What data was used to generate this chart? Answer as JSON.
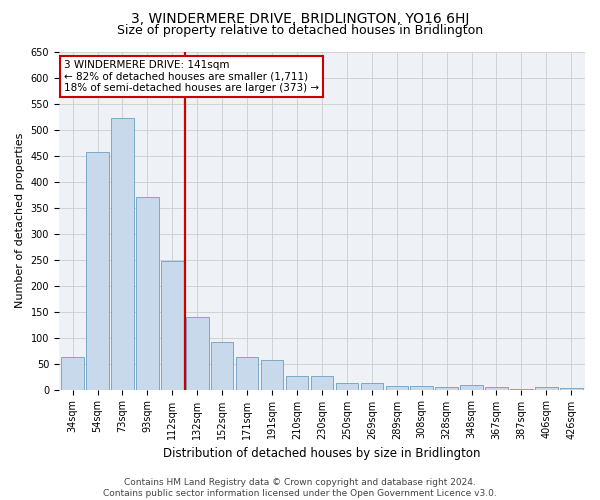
{
  "title": "3, WINDERMERE DRIVE, BRIDLINGTON, YO16 6HJ",
  "subtitle": "Size of property relative to detached houses in Bridlington",
  "xlabel": "Distribution of detached houses by size in Bridlington",
  "ylabel": "Number of detached properties",
  "bar_color": "#c9d9ec",
  "bar_edge_color": "#6a9fc0",
  "categories": [
    "34sqm",
    "54sqm",
    "73sqm",
    "93sqm",
    "112sqm",
    "132sqm",
    "152sqm",
    "171sqm",
    "191sqm",
    "210sqm",
    "230sqm",
    "250sqm",
    "269sqm",
    "289sqm",
    "308sqm",
    "328sqm",
    "348sqm",
    "367sqm",
    "387sqm",
    "406sqm",
    "426sqm"
  ],
  "values": [
    62,
    457,
    522,
    370,
    248,
    140,
    92,
    62,
    57,
    27,
    26,
    12,
    13,
    6,
    7,
    4,
    9,
    4,
    2,
    5,
    3
  ],
  "vline_color": "#cc0000",
  "annotation_text": "3 WINDERMERE DRIVE: 141sqm\n← 82% of detached houses are smaller (1,711)\n18% of semi-detached houses are larger (373) →",
  "annotation_box_color": "#ffffff",
  "annotation_box_edge": "#cc0000",
  "ylim": [
    0,
    650
  ],
  "yticks": [
    0,
    50,
    100,
    150,
    200,
    250,
    300,
    350,
    400,
    450,
    500,
    550,
    600,
    650
  ],
  "footer": "Contains HM Land Registry data © Crown copyright and database right 2024.\nContains public sector information licensed under the Open Government Licence v3.0.",
  "bg_color": "#ffffff",
  "grid_color": "#cccccc",
  "title_fontsize": 10,
  "subtitle_fontsize": 9,
  "xlabel_fontsize": 8.5,
  "ylabel_fontsize": 8,
  "tick_fontsize": 7,
  "annotation_fontsize": 7.5,
  "footer_fontsize": 6.5
}
